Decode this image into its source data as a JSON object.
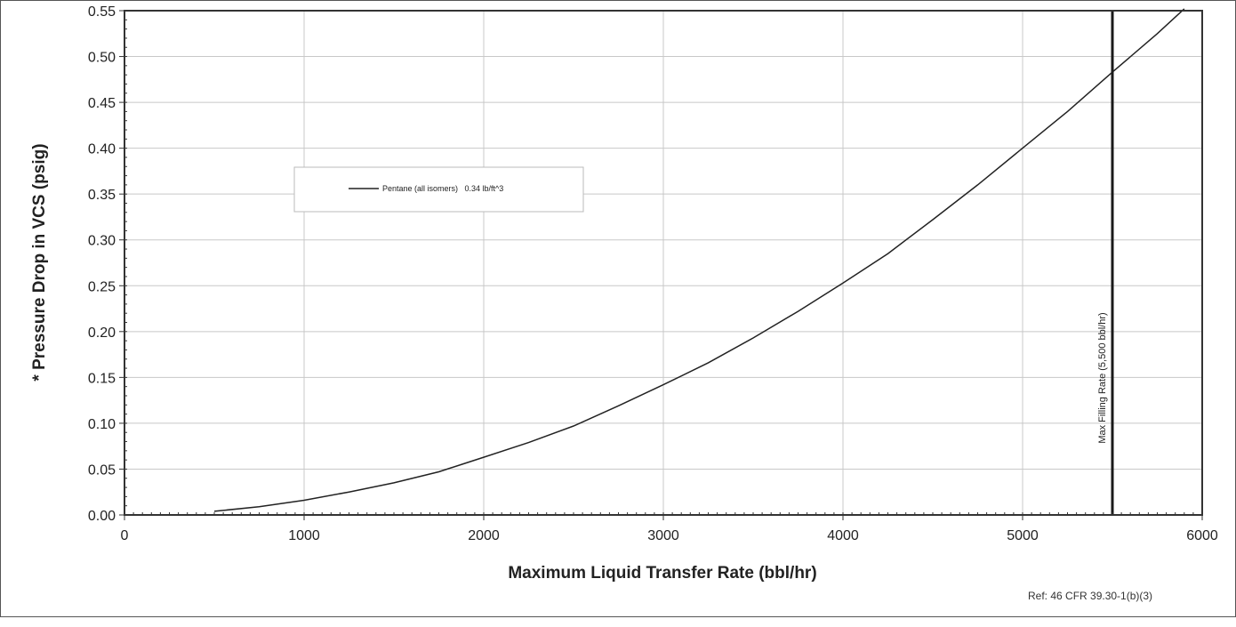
{
  "chart_data": {
    "type": "line",
    "title": "",
    "xlabel": "Maximum Liquid Transfer Rate (bbl/hr)",
    "ylabel": "* Pressure Drop in VCS (psig)",
    "xlim": [
      0,
      6000
    ],
    "ylim": [
      0,
      0.55
    ],
    "x_ticks": [
      0,
      1000,
      2000,
      3000,
      4000,
      5000,
      6000
    ],
    "x_tick_labels": [
      "0",
      "1000",
      "2000",
      "3000",
      "4000",
      "5000",
      "6000"
    ],
    "y_ticks": [
      0,
      0.05,
      0.1,
      0.15,
      0.2,
      0.25,
      0.3,
      0.35,
      0.4,
      0.45,
      0.5,
      0.55
    ],
    "y_tick_labels": [
      "0.00",
      "0.05",
      "0.10",
      "0.15",
      "0.20",
      "0.25",
      "0.30",
      "0.35",
      "0.40",
      "0.45",
      "0.50",
      "0.55"
    ],
    "grid": true,
    "legend_position": "upper-left",
    "series": [
      {
        "name": "Pentane (all isomers)   0.34 lb/ft^3",
        "color": "#222222",
        "x": [
          500,
          750,
          1000,
          1250,
          1500,
          1750,
          2000,
          2250,
          2500,
          2750,
          3000,
          3250,
          3500,
          3750,
          4000,
          4250,
          4500,
          4750,
          5000,
          5250,
          5500,
          5750,
          5900
        ],
        "y": [
          0.004,
          0.009,
          0.016,
          0.025,
          0.035,
          0.047,
          0.063,
          0.079,
          0.097,
          0.119,
          0.142,
          0.166,
          0.193,
          0.222,
          0.253,
          0.285,
          0.322,
          0.36,
          0.4,
          0.44,
          0.483,
          0.525,
          0.552
        ]
      }
    ],
    "annotations": [
      {
        "kind": "vertical-line",
        "x": 5500,
        "label": "Max Filling Rate (5,500 bbl/hr)"
      }
    ],
    "footnote": "Ref: 46 CFR 39.30-1(b)(3)"
  },
  "colors": {
    "frame": "#333333",
    "grid": "#c8c8c8",
    "series": "#222222",
    "marker_line": "#1a1a1a"
  }
}
